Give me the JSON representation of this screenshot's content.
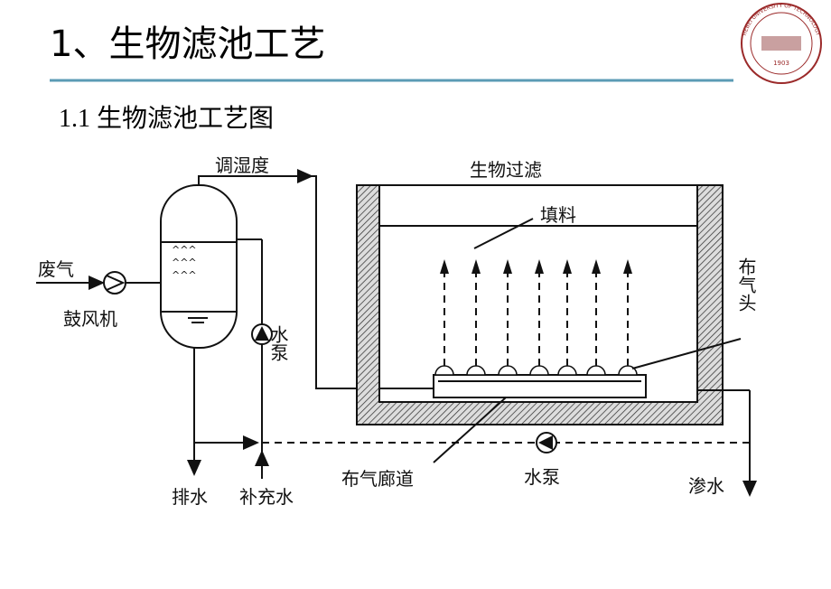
{
  "header": {
    "title": "1、生物滤池工艺",
    "subtitle": "1.1 生物滤池工艺图"
  },
  "logo": {
    "text": "HEBEI UNIVERSITY OF TECHNOLOGY",
    "year": "1903"
  },
  "diagram": {
    "labels": {
      "humidify": "调湿度",
      "biofilter": "生物过滤",
      "packing": "填料",
      "waste_gas": "废气",
      "blower": "鼓风机",
      "pump_left": "水泵",
      "diffuser": "布气头",
      "gas_corridor": "布气廊道",
      "pump_bottom": "水泵",
      "drain": "排水",
      "makeup_water": "补充水",
      "leachate": "渗水"
    }
  }
}
